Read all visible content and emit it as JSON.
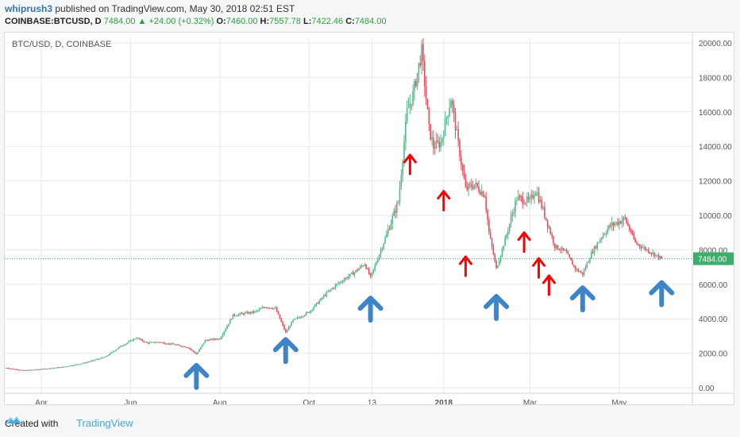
{
  "header": {
    "author": "whiprush3",
    "published_text": "published on TradingView.com, May 30, 2018 02:51 EST",
    "symbol_line": "COINBASE:BTCUSD, D",
    "last_price": "7484.00",
    "change_arrow": "▲",
    "change": "+24.00 (+0.32%)",
    "open_label": "O:",
    "open": "7460.00",
    "high_label": "H:",
    "high": "7557.78",
    "low_label": "L:",
    "low": "7422.46",
    "close_label": "C:",
    "close": "7484.00"
  },
  "footer": {
    "created_with": "Created with",
    "brand": "TradingView"
  },
  "colors": {
    "up": "#53b987",
    "down": "#eb4d5c",
    "arrow_red": "#ff0000",
    "arrow_blue": "#3d85c6",
    "price_line": "#3cae6a",
    "grid": "#e6e9ee"
  },
  "chart_data": {
    "type": "line",
    "chart_style": "candlestick",
    "title": "BTC/USD, D, COINBASE",
    "y_ticks": [
      "20000.00",
      "18000.00",
      "16000.00",
      "14000.00",
      "12000.00",
      "10000.00",
      "8000.00",
      "6000.00",
      "4000.00",
      "2000.00",
      "0.00"
    ],
    "ylim": [
      0,
      20000
    ],
    "x_ticks": [
      {
        "label": "Apr",
        "date": "2017-04-01"
      },
      {
        "label": "Jun",
        "date": "2017-06-01"
      },
      {
        "label": "Aug",
        "date": "2017-08-01"
      },
      {
        "label": "Oct",
        "date": "2017-10-01"
      },
      {
        "label": "13",
        "date": "2017-11-13"
      },
      {
        "label": "2018",
        "date": "2018-01-01"
      },
      {
        "label": "Mar",
        "date": "2018-03-01"
      },
      {
        "label": "May",
        "date": "2018-05-01"
      }
    ],
    "xlim": [
      "2017-03-07",
      "2018-06-20"
    ],
    "grid": true,
    "last_price_label": "7484.00",
    "last_price": 7484,
    "series": [
      {
        "x": [
          "2017-03-08",
          "2017-03-20",
          "2017-04-01",
          "2017-04-15",
          "2017-05-01",
          "2017-05-15",
          "2017-05-25",
          "2017-06-05",
          "2017-06-12",
          "2017-06-20",
          "2017-07-01",
          "2017-07-10",
          "2017-07-16",
          "2017-07-22",
          "2017-08-01",
          "2017-08-10",
          "2017-08-17",
          "2017-08-25",
          "2017-09-01",
          "2017-09-08",
          "2017-09-15",
          "2017-09-20",
          "2017-10-01",
          "2017-10-12",
          "2017-10-20",
          "2017-11-01",
          "2017-11-08",
          "2017-11-12",
          "2017-11-20",
          "2017-12-01",
          "2017-12-07",
          "2017-12-11",
          "2017-12-17",
          "2017-12-22",
          "2017-12-25",
          "2017-12-30",
          "2018-01-06",
          "2018-01-12",
          "2018-01-16",
          "2018-01-22",
          "2018-01-29",
          "2018-02-01",
          "2018-02-06",
          "2018-02-12",
          "2018-02-20",
          "2018-03-01",
          "2018-03-05",
          "2018-03-12",
          "2018-03-18",
          "2018-03-25",
          "2018-04-01",
          "2018-04-06",
          "2018-04-12",
          "2018-04-20",
          "2018-04-25",
          "2018-05-05",
          "2018-05-12",
          "2018-05-20",
          "2018-05-30"
        ],
        "values": [
          1150,
          1000,
          1080,
          1190,
          1450,
          1800,
          2400,
          2900,
          2600,
          2650,
          2500,
          2350,
          1950,
          2750,
          2850,
          4200,
          4300,
          4400,
          4700,
          4600,
          3200,
          3900,
          4400,
          5400,
          6000,
          6700,
          7200,
          6400,
          8200,
          10800,
          16000,
          17000,
          19500,
          15000,
          14000,
          14200,
          16800,
          13600,
          11500,
          11800,
          11200,
          9000,
          6900,
          8600,
          11000,
          10800,
          11500,
          9800,
          8200,
          7900,
          6900,
          6600,
          7800,
          8900,
          9400,
          9800,
          8400,
          8000,
          7484
        ]
      }
    ],
    "arrows": {
      "red_up": [
        {
          "date": "2017-12-09",
          "y": 13500
        },
        {
          "date": "2018-01-01",
          "y": 11400
        },
        {
          "date": "2018-01-16",
          "y": 7600
        },
        {
          "date": "2018-02-25",
          "y": 9000
        },
        {
          "date": "2018-03-07",
          "y": 7500
        },
        {
          "date": "2018-03-14",
          "y": 6500
        }
      ],
      "blue_up": [
        {
          "date": "2017-07-16",
          "y": 1300
        },
        {
          "date": "2017-09-15",
          "y": 2800
        },
        {
          "date": "2017-11-12",
          "y": 5200
        },
        {
          "date": "2018-02-06",
          "y": 5300
        },
        {
          "date": "2018-04-06",
          "y": 5800
        },
        {
          "date": "2018-05-30",
          "y": 6100
        }
      ]
    }
  }
}
